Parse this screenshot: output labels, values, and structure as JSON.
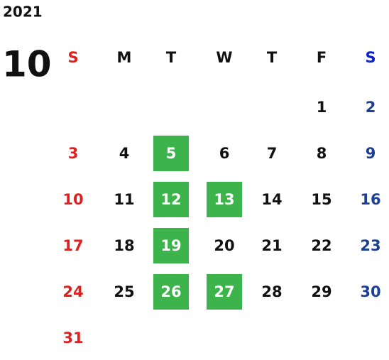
{
  "calendar": {
    "year": "2021",
    "month": "10",
    "weekdays": [
      "S",
      "M",
      "T",
      "W",
      "T",
      "F",
      "S"
    ],
    "weeks": [
      [
        null,
        null,
        null,
        null,
        null,
        1,
        2
      ],
      [
        3,
        4,
        5,
        6,
        7,
        8,
        9
      ],
      [
        10,
        11,
        12,
        13,
        14,
        15,
        16
      ],
      [
        17,
        18,
        19,
        20,
        21,
        22,
        23
      ],
      [
        24,
        25,
        26,
        27,
        28,
        29,
        30
      ],
      [
        31,
        null,
        null,
        null,
        null,
        null,
        null
      ]
    ],
    "highlighted": [
      5,
      12,
      13,
      19,
      26,
      27
    ]
  }
}
